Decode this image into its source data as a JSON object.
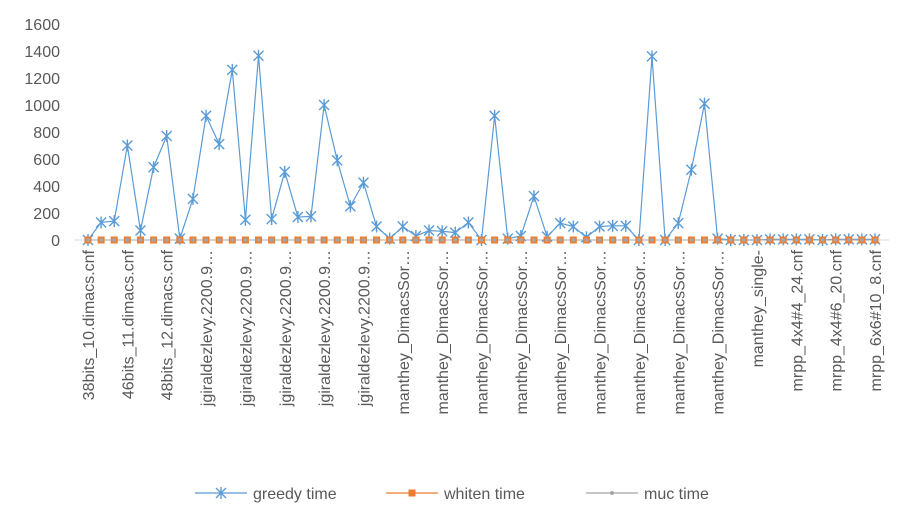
{
  "chart_data": {
    "type": "line",
    "categories": [
      "38bits_10.dimacs.cnf",
      null,
      null,
      "46bits_11.dimacs.cnf",
      null,
      null,
      "48bits_12.dimacs.cnf",
      null,
      null,
      "jgiraldezlevy.2200.9…",
      null,
      null,
      "jgiraldezlevy.2200.9…",
      null,
      null,
      "jgiraldezlevy.2200.9…",
      null,
      null,
      "jgiraldezlevy.2200.9…",
      null,
      null,
      "jgiraldezlevy.2200.9…",
      null,
      null,
      "manthey_DimacsSor…",
      null,
      null,
      "manthey_DimacsSor…",
      null,
      null,
      "manthey_DimacsSor…",
      null,
      null,
      "manthey_DimacsSor…",
      null,
      null,
      "manthey_DimacsSor…",
      null,
      null,
      "manthey_DimacsSor…",
      null,
      null,
      "manthey_DimacsSor…",
      null,
      null,
      "manthey_DimacsSor…",
      null,
      null,
      "manthey_DimacsSor…",
      null,
      null,
      "manthey_single-",
      null,
      null,
      "mrpp_4x4#4_24.cnf",
      null,
      null,
      "mrpp_4x4#6_20.cnf",
      null,
      null,
      "mrpp_6x6#10_8.cnf"
    ],
    "series": [
      {
        "name": "greedy time",
        "color": "#5b9bd5",
        "values": [
          0,
          130,
          140,
          700,
          70,
          540,
          770,
          10,
          305,
          920,
          710,
          1260,
          150,
          1365,
          155,
          505,
          170,
          175,
          1000,
          590,
          250,
          425,
          100,
          10,
          100,
          30,
          70,
          65,
          55,
          130,
          0,
          920,
          10,
          30,
          325,
          25,
          125,
          100,
          20,
          100,
          105,
          105,
          0,
          1360,
          0,
          125,
          520,
          1010,
          10,
          0,
          0,
          0,
          5,
          5,
          5,
          5,
          0,
          5,
          5,
          5,
          5
        ]
      },
      {
        "name": "whiten time",
        "color": "#ed7d31",
        "values": [
          0,
          0,
          0,
          0,
          0,
          0,
          0,
          0,
          0,
          0,
          0,
          0,
          0,
          0,
          0,
          0,
          0,
          0,
          0,
          0,
          0,
          0,
          0,
          0,
          0,
          0,
          0,
          0,
          0,
          0,
          0,
          0,
          0,
          0,
          0,
          0,
          0,
          0,
          0,
          0,
          0,
          0,
          0,
          0,
          0,
          0,
          0,
          0,
          0,
          0,
          0,
          0,
          0,
          0,
          0,
          0,
          0,
          0,
          0,
          0,
          0
        ]
      },
      {
        "name": "muc time",
        "color": "#a5a5a5",
        "values": [
          0,
          0,
          0,
          0,
          0,
          0,
          0,
          0,
          0,
          0,
          0,
          0,
          0,
          0,
          0,
          0,
          0,
          0,
          0,
          0,
          0,
          0,
          0,
          0,
          0,
          0,
          0,
          0,
          0,
          0,
          0,
          0,
          0,
          0,
          0,
          0,
          0,
          0,
          0,
          0,
          0,
          0,
          0,
          0,
          0,
          0,
          0,
          0,
          0,
          0,
          0,
          0,
          0,
          0,
          0,
          0,
          0,
          0,
          0,
          0,
          0
        ]
      }
    ],
    "ylim": [
      0,
      1600
    ],
    "yticks": [
      0,
      200,
      400,
      600,
      800,
      1000,
      1200,
      1400,
      1600
    ]
  }
}
